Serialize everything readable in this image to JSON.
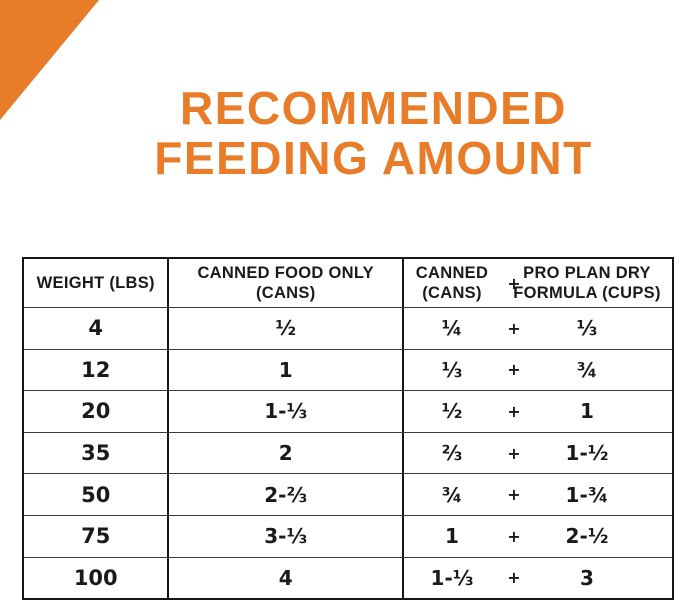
{
  "page": {
    "background": "#ffffff",
    "accent_orange": "#E87C28",
    "text_black": "#1a1a1a"
  },
  "title": {
    "line1": "RECOMMENDED",
    "line2": "FEEDING AMOUNT"
  },
  "table": {
    "plus": "+",
    "header": {
      "weight": "WEIGHT (LBS)",
      "canned_only_l1": "CANNED FOOD ONLY",
      "canned_only_l2": "(CANS)",
      "canned_l1": "CANNED",
      "canned_l2": "(CANS)",
      "dry_l1": "PRO PLAN DRY",
      "dry_l2": "FORMULA (CUPS)"
    },
    "rows": [
      {
        "weight": "4",
        "canned_only": "½",
        "canned": "¼",
        "dry": "⅓"
      },
      {
        "weight": "12",
        "canned_only": "1",
        "canned": "⅓",
        "dry": "¾"
      },
      {
        "weight": "20",
        "canned_only": "1-⅓",
        "canned": "½",
        "dry": "1"
      },
      {
        "weight": "35",
        "canned_only": "2",
        "canned": "⅔",
        "dry": "1-½"
      },
      {
        "weight": "50",
        "canned_only": "2-⅔",
        "canned": "¾",
        "dry": "1-¾"
      },
      {
        "weight": "75",
        "canned_only": "3-⅓",
        "canned": "1",
        "dry": "2-½"
      },
      {
        "weight": "100",
        "canned_only": "4",
        "canned": "1-⅓",
        "dry": "3"
      }
    ]
  },
  "chart_data": {
    "type": "table",
    "title": "RECOMMENDED FEEDING AMOUNT",
    "columns": [
      "WEIGHT (LBS)",
      "CANNED FOOD ONLY (CANS)",
      "CANNED (CANS)",
      "PRO PLAN DRY FORMULA (CUPS)"
    ],
    "rows": [
      [
        "4",
        "1/2",
        "1/4",
        "1/3"
      ],
      [
        "12",
        "1",
        "1/3",
        "3/4"
      ],
      [
        "20",
        "1-1/3",
        "1/2",
        "1"
      ],
      [
        "35",
        "2",
        "2/3",
        "1-1/2"
      ],
      [
        "50",
        "2-2/3",
        "3/4",
        "1-3/4"
      ],
      [
        "75",
        "3-1/3",
        "1",
        "2-1/2"
      ],
      [
        "100",
        "4",
        "1-1/3",
        "3"
      ]
    ],
    "notes": "Canned column + Dry column are combined serving; accent color #E87C28; orange triangle decoration top-left"
  }
}
